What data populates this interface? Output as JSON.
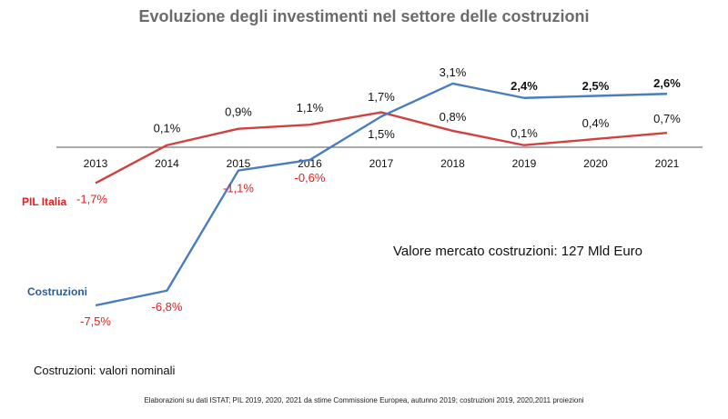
{
  "title": "Evoluzione degli investimenti nel settore delle costruzioni",
  "market_value": "Valore mercato costruzioni: 127 Mld Euro",
  "note": "Costruzioni: valori nominali",
  "source": "Elaborazioni su dati ISTAT; PIL 2019, 2020, 2021 da stime Commissione Europea, autunno 2019; costruzioni 2019, 2020,2011 proiezioni",
  "chart_data": {
    "type": "line",
    "categories": [
      "2013",
      "2014",
      "2015",
      "2016",
      "2017",
      "2018",
      "2019",
      "2020",
      "2021"
    ],
    "series": [
      {
        "name": "PIL Italia",
        "color": "#d0413f",
        "values": [
          -1.7,
          0.1,
          0.9,
          1.1,
          1.7,
          0.8,
          0.1,
          0.4,
          0.7
        ],
        "labels": [
          "-1,7%",
          "0,1%",
          "0,9%",
          "1,1%",
          "1,7%",
          "0,8%",
          "0,1%",
          "0,4%",
          "0,7%"
        ],
        "label_colors": [
          "#e02020",
          "#111111",
          "#111111",
          "#111111",
          "#111111",
          "#111111",
          "#111111",
          "#111111",
          "#111111"
        ]
      },
      {
        "name": "Costruzioni",
        "color": "#4a7dbf",
        "values": [
          -7.5,
          -6.8,
          -1.1,
          -0.6,
          1.5,
          3.1,
          2.4,
          2.5,
          2.6
        ],
        "labels": [
          "-7,5%",
          "-6,8%",
          "-1,1%",
          "-0,6%",
          "1,5%",
          "3,1%",
          "2,4%",
          "2,5%",
          "2,6%"
        ],
        "label_colors": [
          "#e02020",
          "#e02020",
          "#e02020",
          "#e02020",
          "#111111",
          "#111111",
          "#111111",
          "#111111",
          "#111111"
        ],
        "label_bold": [
          false,
          false,
          false,
          false,
          false,
          false,
          true,
          true,
          true
        ]
      }
    ],
    "series_label_colors": {
      "PIL Italia": "#e02020",
      "Costruzioni": "#2a5c9a"
    },
    "axis_color": "#555555",
    "ylim": [
      -8,
      3.5
    ],
    "xlabel": "",
    "ylabel": ""
  }
}
